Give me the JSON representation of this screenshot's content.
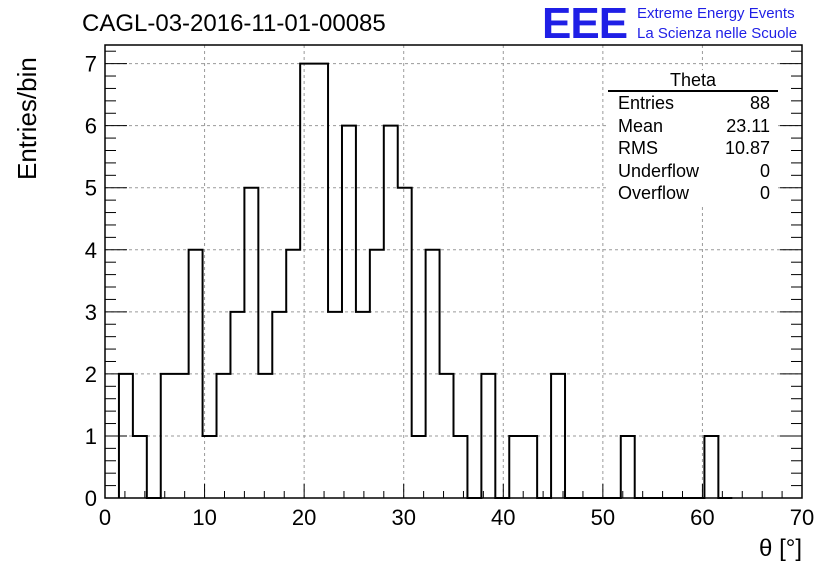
{
  "chart_data": {
    "type": "bar",
    "title": "CAGL-03-2016-11-01-00085",
    "xlabel": "θ [°]",
    "ylabel": "Entries/bin",
    "xlim": [
      0,
      70
    ],
    "ylim": [
      0,
      7.3
    ],
    "grid": true,
    "bin_width": 1.4,
    "bins_x0": [
      1.4,
      2.8,
      4.2,
      5.6,
      7.0,
      8.4,
      9.8,
      11.2,
      12.6,
      14.0,
      15.4,
      16.8,
      18.2,
      19.6,
      21.0,
      22.4,
      23.8,
      25.2,
      26.6,
      28.0,
      29.4,
      30.8,
      32.2,
      33.6,
      35.0,
      36.4,
      37.8,
      39.2,
      40.6,
      42.0,
      43.4,
      44.8,
      46.2,
      47.6,
      49.0,
      50.4,
      51.8,
      53.2,
      54.6,
      56.0,
      57.4,
      58.8,
      60.2,
      61.6
    ],
    "values": [
      2,
      1,
      0,
      2,
      2,
      4,
      1,
      2,
      3,
      5,
      2,
      3,
      4,
      7,
      7,
      3,
      6,
      3,
      4,
      6,
      5,
      1,
      4,
      2,
      1,
      0,
      2,
      0,
      1,
      1,
      0,
      2,
      0,
      0,
      0,
      0,
      1,
      0,
      0,
      0,
      0,
      0,
      1,
      0
    ],
    "xticks": [
      0,
      10,
      20,
      30,
      40,
      50,
      60,
      70
    ],
    "yticks": [
      0,
      1,
      2,
      3,
      4,
      5,
      6,
      7
    ]
  },
  "logo": {
    "mark": "EEE",
    "line1": "Extreme Energy Events",
    "line2": "La Scienza nelle Scuole"
  },
  "stats": {
    "title": "Theta",
    "rows": [
      {
        "label": "Entries",
        "value": "88"
      },
      {
        "label": "Mean",
        "value": "23.11"
      },
      {
        "label": "RMS",
        "value": "10.87"
      },
      {
        "label": "Underflow",
        "value": "0"
      },
      {
        "label": "Overflow",
        "value": "0"
      }
    ]
  },
  "colors": {
    "logo": "#1f1fe6",
    "line": "#000000",
    "grid": "#9a9a9a"
  }
}
